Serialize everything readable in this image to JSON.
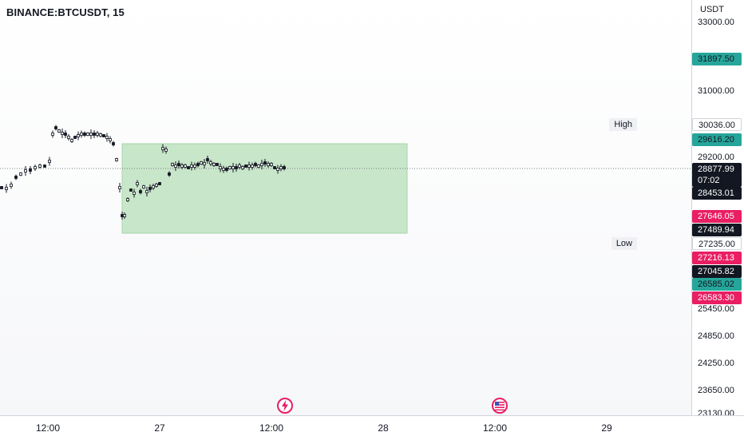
{
  "header": {
    "symbol": "BINANCE:BTCUSDT, 15"
  },
  "price_scale": {
    "currency": "USDT",
    "ticks": [
      "33000.00",
      "31000.00",
      "29200.00",
      "25450.00",
      "24850.00",
      "24250.00",
      "23650.00",
      "23130.00"
    ],
    "tags": [
      {
        "text": "31897.50",
        "bg": "#26a69a",
        "fg": "#131722"
      },
      {
        "text": "30036.00",
        "bg": "#ffffff",
        "fg": "#131722"
      },
      {
        "text": "29616.20",
        "bg": "#26a69a",
        "fg": "#131722"
      },
      {
        "text": "28877.99",
        "bg": "#131722",
        "fg": "#ffffff"
      },
      {
        "text": "07:02",
        "bg": "#131722",
        "fg": "#ffffff"
      },
      {
        "text": "28453.01",
        "bg": "#131722",
        "fg": "#ffffff"
      },
      {
        "text": "27646.05",
        "bg": "#e91e63",
        "fg": "#ffffff"
      },
      {
        "text": "27489.94",
        "bg": "#131722",
        "fg": "#ffffff"
      },
      {
        "text": "27235.00",
        "bg": "#ffffff",
        "fg": "#131722"
      },
      {
        "text": "27216.13",
        "bg": "#e91e63",
        "fg": "#ffffff"
      },
      {
        "text": "27045.82",
        "bg": "#131722",
        "fg": "#ffffff"
      },
      {
        "text": "26585.02",
        "bg": "#26a69a",
        "fg": "#131722"
      },
      {
        "text": "26583.30",
        "bg": "#e91e63",
        "fg": "#ffffff"
      }
    ],
    "high_label": "High",
    "low_label": "Low"
  },
  "time_scale": {
    "labels": [
      "12:00",
      "27",
      "12:00",
      "28",
      "12:00",
      "29"
    ]
  },
  "events": [
    {
      "icon": "lightning-icon",
      "color": "#e91e63"
    },
    {
      "icon": "us-flag-icon",
      "color": "#e91e63"
    }
  ],
  "colors": {
    "range_box": "#a5d6a7",
    "range_box_border": "#81c784",
    "candle": "#131722",
    "crosshair": "#787b86"
  }
}
